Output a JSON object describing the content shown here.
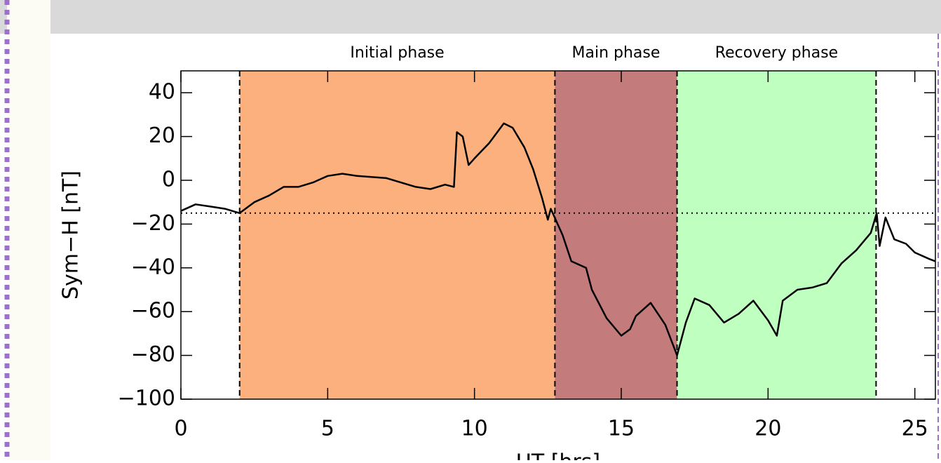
{
  "chart_data": {
    "type": "line",
    "y_label": "Sym−H [nT]",
    "x_label": "UT [hrs]",
    "xlim": [
      0,
      25.7
    ],
    "ylim": [
      -100,
      50
    ],
    "xticks": [
      0,
      5,
      10,
      15,
      20,
      25
    ],
    "yticks": [
      {
        "value": -100,
        "label": "−100"
      },
      {
        "value": -80,
        "label": "−80"
      },
      {
        "value": -60,
        "label": "−60"
      },
      {
        "value": -40,
        "label": "−40"
      },
      {
        "value": -20,
        "label": "−20"
      },
      0,
      20,
      40
    ],
    "phases": [
      {
        "label": "Initial phase",
        "start": 2.0,
        "end": 12.74,
        "color": "#fbb07e"
      },
      {
        "label": "Main phase",
        "start": 12.74,
        "end": 16.9,
        "color": "#c47b7b"
      },
      {
        "label": "Recovery phase",
        "start": 16.9,
        "end": 23.68,
        "color": "#bfffbf"
      }
    ],
    "reference_line": -15,
    "series": [
      {
        "name": "Sym-H",
        "color": "#000000",
        "x": [
          0,
          0.5,
          1,
          1.5,
          2,
          2.5,
          3,
          3.5,
          4,
          4.5,
          5,
          5.5,
          6,
          7,
          8,
          8.5,
          9,
          9.3,
          9.4,
          9.6,
          9.8,
          10,
          10.5,
          11,
          11.3,
          11.7,
          12,
          12.3,
          12.5,
          12.6,
          13,
          13.3,
          13.8,
          14,
          14.5,
          15,
          15.3,
          15.5,
          16,
          16.5,
          16.9,
          17.2,
          17.5,
          18,
          18.5,
          19,
          19.5,
          20,
          20.3,
          20.5,
          21,
          21.5,
          22,
          22.5,
          23,
          23.5,
          23.7,
          23.8,
          24,
          24.3,
          24.7,
          25,
          25.5,
          25.7
        ],
        "values": [
          -14,
          -11,
          -12,
          -13,
          -15,
          -10,
          -7,
          -3,
          -3,
          -1,
          2,
          3,
          2,
          1,
          -3,
          -4,
          -2,
          -3,
          22,
          20,
          7,
          10,
          17,
          26,
          24,
          15,
          5,
          -8,
          -18,
          -13,
          -25,
          -37,
          -40,
          -50,
          -63,
          -71,
          -68,
          -62,
          -56,
          -66,
          -80,
          -65,
          -54,
          -57,
          -65,
          -61,
          -55,
          -64,
          -71,
          -55,
          -50,
          -49,
          -47,
          -38,
          -32,
          -24,
          -15,
          -30,
          -17,
          -27,
          -29,
          -33,
          -36,
          -37
        ]
      }
    ]
  }
}
